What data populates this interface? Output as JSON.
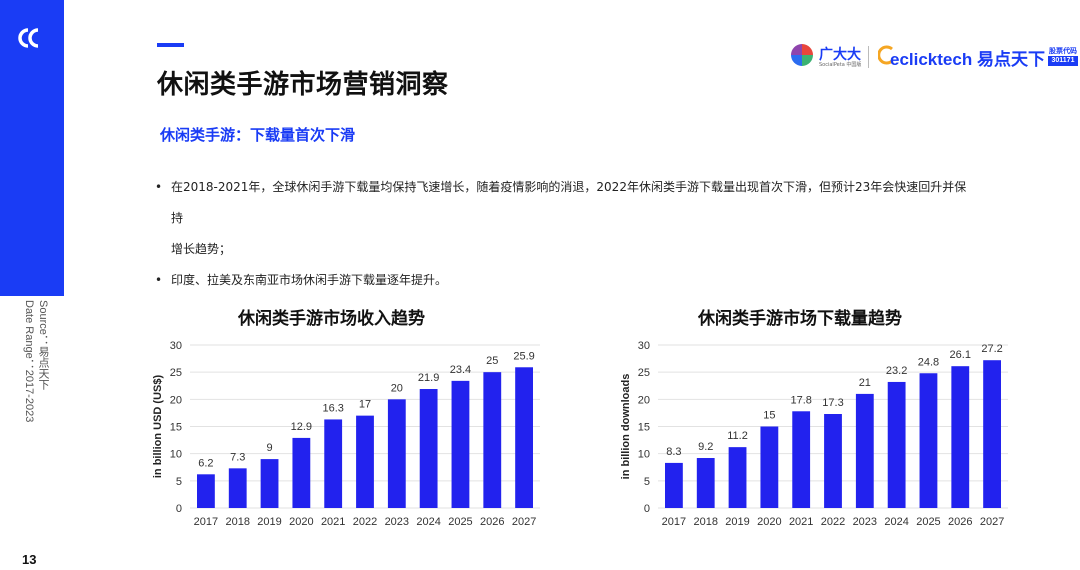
{
  "page": {
    "title": "休闲类手游市场营销洞察",
    "subtitle": "休闲类手游：下载量首次下滑",
    "number": "13",
    "source_lines": [
      "Source：易点天下",
      "Date Range：2017-2023"
    ],
    "accent_color": "#1a3cf5",
    "bar_color": "#2222ee"
  },
  "brand": {
    "gdd_name": "广大大",
    "gdd_sub": "SocialPeta 中国版",
    "eclick_word": "eclicktech",
    "eclick_cn": "易点天下",
    "stock_label": "股票代码",
    "stock_code": "301171"
  },
  "bullets": [
    "在2018-2021年，全球休闲手游下载量均保持飞速增长，随着疫情影响的消退，2022年休闲类手游下载量出现首次下滑，但预计23年会快速回升并保持",
    "增长趋势；",
    "印度、拉美及东南亚市场休闲手游下载量逐年提升。"
  ],
  "chart_data": [
    {
      "type": "bar",
      "title": "休闲类手游市场收入趋势",
      "ylabel": "in billion USD (US$)",
      "xlabel": "",
      "categories": [
        "2017",
        "2018",
        "2019",
        "2020",
        "2021",
        "2022",
        "2023",
        "2024",
        "2025",
        "2026",
        "2027"
      ],
      "values": [
        6.2,
        7.3,
        9,
        12.9,
        16.3,
        17,
        20,
        21.9,
        23.4,
        25,
        25.9
      ],
      "data_labels": [
        "6.2",
        "7.3",
        "9",
        "12.9",
        "16.3",
        "17",
        "20",
        "21.9",
        "23.4",
        "25",
        "25.9"
      ],
      "ylim": [
        0,
        30
      ],
      "yticks": [
        0,
        5,
        10,
        15,
        20,
        25,
        30
      ],
      "grid": true,
      "legend": "none"
    },
    {
      "type": "bar",
      "title": "休闲类手游市场下载量趋势",
      "ylabel": "in billion downloads",
      "xlabel": "",
      "categories": [
        "2017",
        "2018",
        "2019",
        "2020",
        "2021",
        "2022",
        "2023",
        "2024",
        "2025",
        "2026",
        "2027"
      ],
      "values": [
        8.3,
        9.2,
        11.2,
        15,
        17.8,
        17.3,
        21,
        23.2,
        24.8,
        26.1,
        27.2
      ],
      "data_labels": [
        "8.3",
        "9.2",
        "11.2",
        "15",
        "17.8",
        "17.3",
        "21",
        "23.2",
        "24.8",
        "26.1",
        "27.2"
      ],
      "ylim": [
        0,
        30
      ],
      "yticks": [
        0,
        5,
        10,
        15,
        20,
        25,
        30
      ],
      "grid": true,
      "legend": "none"
    }
  ]
}
